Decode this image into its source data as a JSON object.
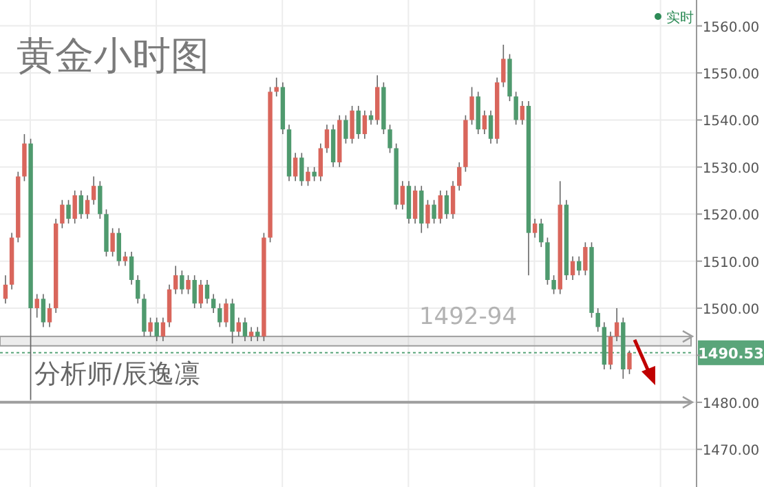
{
  "chart_data": {
    "type": "candlestick",
    "title": "黄金小时图",
    "annotations": [
      "分析师/辰逸凛",
      "实时"
    ],
    "categories": [
      null,
      null,
      null,
      null,
      null,
      null,
      null,
      null,
      null,
      null,
      null,
      null,
      null,
      null,
      null,
      null,
      null,
      null,
      null,
      null,
      null,
      null,
      null,
      null,
      null,
      null,
      null,
      null,
      null,
      null,
      null,
      null,
      null,
      null,
      null,
      null,
      null,
      null,
      null,
      null,
      null,
      null,
      null,
      null,
      null,
      null,
      null,
      null,
      null,
      null,
      null,
      null,
      null,
      null,
      null,
      null,
      null,
      null,
      null,
      null,
      null,
      null,
      null,
      null,
      null,
      null,
      null,
      null,
      null,
      null,
      null,
      null,
      null,
      null,
      null,
      null,
      null,
      null,
      null,
      null,
      null,
      null,
      null,
      null,
      null,
      null,
      null,
      null,
      null,
      null,
      null,
      null,
      null,
      null,
      null,
      null,
      null,
      null,
      null,
      null,
      null,
      null,
      null,
      null,
      null,
      null,
      null,
      null,
      null,
      null
    ],
    "ohlc": [
      [
        1502,
        1507,
        1501,
        1505
      ],
      [
        1505,
        1516,
        1504,
        1515
      ],
      [
        1515,
        1529,
        1514,
        1528
      ],
      [
        1528,
        1537,
        1527,
        1535
      ],
      [
        1535,
        1536,
        1480.5,
        1500
      ],
      [
        1500,
        1503,
        1498,
        1502
      ],
      [
        1502,
        1503,
        1496,
        1497
      ],
      [
        1497,
        1501,
        1496,
        1500
      ],
      [
        1500,
        1519,
        1499,
        1518
      ],
      [
        1518,
        1523,
        1517,
        1522
      ],
      [
        1522,
        1523,
        1518,
        1519
      ],
      [
        1519,
        1525,
        1518,
        1524
      ],
      [
        1524,
        1525,
        1519,
        1520
      ],
      [
        1520,
        1524,
        1519,
        1523
      ],
      [
        1523,
        1528,
        1522,
        1526
      ],
      [
        1526,
        1527,
        1519,
        1520
      ],
      [
        1520,
        1521,
        1511,
        1512
      ],
      [
        1512,
        1517,
        1511,
        1516
      ],
      [
        1516,
        1517,
        1509,
        1510
      ],
      [
        1510,
        1512,
        1509,
        1511
      ],
      [
        1511,
        1512,
        1505,
        1506
      ],
      [
        1506,
        1507,
        1501,
        1502
      ],
      [
        1502,
        1503,
        1494,
        1495
      ],
      [
        1495,
        1498,
        1494,
        1497
      ],
      [
        1497,
        1498,
        1493,
        1494
      ],
      [
        1494,
        1498,
        1493,
        1497
      ],
      [
        1497,
        1505,
        1496,
        1504
      ],
      [
        1504,
        1509,
        1503,
        1507
      ],
      [
        1507,
        1508,
        1503,
        1504
      ],
      [
        1504,
        1507,
        1503,
        1506
      ],
      [
        1506,
        1507,
        1500,
        1501
      ],
      [
        1501,
        1506,
        1500,
        1505
      ],
      [
        1505,
        1506,
        1501,
        1502
      ],
      [
        1502,
        1503,
        1499,
        1500
      ],
      [
        1500,
        1501,
        1496,
        1497
      ],
      [
        1497,
        1502,
        1496,
        1501
      ],
      [
        1501,
        1502,
        1492.5,
        1495
      ],
      [
        1495,
        1498,
        1494,
        1497
      ],
      [
        1497,
        1498,
        1493,
        1494
      ],
      [
        1494,
        1496,
        1493,
        1495
      ],
      [
        1495,
        1496,
        1493,
        1494
      ],
      [
        1494,
        1516,
        1493,
        1515
      ],
      [
        1515,
        1547,
        1514,
        1546
      ],
      [
        1546,
        1549,
        1545,
        1547
      ],
      [
        1547,
        1548,
        1537,
        1538
      ],
      [
        1538,
        1539,
        1527,
        1528
      ],
      [
        1528,
        1533,
        1527,
        1532
      ],
      [
        1532,
        1533,
        1526,
        1527
      ],
      [
        1527,
        1530,
        1526,
        1529
      ],
      [
        1529,
        1530,
        1527,
        1528
      ],
      [
        1528,
        1535,
        1527,
        1534
      ],
      [
        1534,
        1539,
        1533,
        1538
      ],
      [
        1538,
        1539,
        1530,
        1531
      ],
      [
        1531,
        1541,
        1530,
        1540
      ],
      [
        1540,
        1541,
        1535,
        1536
      ],
      [
        1536,
        1543,
        1535,
        1542
      ],
      [
        1542,
        1543,
        1536,
        1537
      ],
      [
        1537,
        1542,
        1536,
        1541
      ],
      [
        1541,
        1542,
        1539,
        1540
      ],
      [
        1540,
        1549.5,
        1539,
        1547
      ],
      [
        1547,
        1548,
        1537,
        1538
      ],
      [
        1538,
        1539,
        1533,
        1534
      ],
      [
        1534,
        1535,
        1521,
        1522
      ],
      [
        1522,
        1527,
        1521,
        1526
      ],
      [
        1526,
        1527,
        1518,
        1519
      ],
      [
        1519,
        1526,
        1518,
        1525
      ],
      [
        1525,
        1526,
        1516,
        1518
      ],
      [
        1518,
        1523,
        1517,
        1522
      ],
      [
        1522,
        1523,
        1518,
        1519
      ],
      [
        1519,
        1525,
        1518,
        1524
      ],
      [
        1524,
        1525,
        1519,
        1520
      ],
      [
        1520,
        1527,
        1519,
        1526
      ],
      [
        1526,
        1531,
        1525,
        1530
      ],
      [
        1530,
        1541,
        1529,
        1540
      ],
      [
        1540,
        1547,
        1539,
        1545
      ],
      [
        1545,
        1546,
        1537,
        1538
      ],
      [
        1538,
        1542,
        1537,
        1541
      ],
      [
        1541,
        1542,
        1535,
        1536
      ],
      [
        1536,
        1549,
        1535,
        1548
      ],
      [
        1548,
        1556,
        1547,
        1553
      ],
      [
        1553,
        1554,
        1544,
        1545
      ],
      [
        1545,
        1546,
        1539,
        1540
      ],
      [
        1540,
        1544,
        1539,
        1543
      ],
      [
        1543,
        1544,
        1507,
        1516
      ],
      [
        1516,
        1519,
        1515,
        1518
      ],
      [
        1518,
        1519,
        1513,
        1514
      ],
      [
        1514,
        1515,
        1505,
        1506
      ],
      [
        1506,
        1507,
        1503,
        1504
      ],
      [
        1504,
        1527,
        1503,
        1522
      ],
      [
        1522,
        1523,
        1506,
        1507
      ],
      [
        1507,
        1511,
        1506,
        1510
      ],
      [
        1510,
        1511,
        1507,
        1508
      ],
      [
        1508,
        1514,
        1507,
        1513
      ],
      [
        1513,
        1514,
        1498,
        1499
      ],
      [
        1499,
        1500,
        1495,
        1496
      ],
      [
        1496,
        1497,
        1487,
        1488
      ],
      [
        1488,
        1495,
        1487,
        1494
      ],
      [
        1494,
        1500,
        1493,
        1497
      ],
      [
        1497,
        1498,
        1485,
        1487
      ],
      [
        1487,
        1491,
        1486,
        1490.5
      ],
      null,
      null,
      null,
      null,
      null,
      null,
      null,
      null,
      null,
      null
    ],
    "ylim": [
      1462,
      1565.5
    ],
    "yticks": [
      {
        "value": 1470,
        "label": "1470.00"
      },
      {
        "value": 1480,
        "label": "1480.00"
      },
      {
        "value": 1490,
        "label": null
      },
      {
        "value": 1500,
        "label": "1500.00"
      },
      {
        "value": 1510,
        "label": "1510.00"
      },
      {
        "value": 1520,
        "label": "1520.00"
      },
      {
        "value": 1530,
        "label": "1530.00"
      },
      {
        "value": 1540,
        "label": "1540.00"
      },
      {
        "value": 1550,
        "label": "1550.00"
      },
      {
        "value": 1560,
        "label": "1560.00"
      }
    ],
    "grid": true,
    "bands": [
      {
        "axis": "y",
        "from": 1492,
        "to": 1494,
        "label": "1492-94",
        "color": "#9e9e9e"
      }
    ],
    "ref_lines": [
      {
        "axis": "y",
        "value": 1480,
        "label": null,
        "color": "#9e9e9e"
      },
      {
        "axis": "y",
        "value": 1490.53,
        "label": "1490.53",
        "color": "#5aa57a",
        "line_style": "dotted"
      }
    ]
  }
}
